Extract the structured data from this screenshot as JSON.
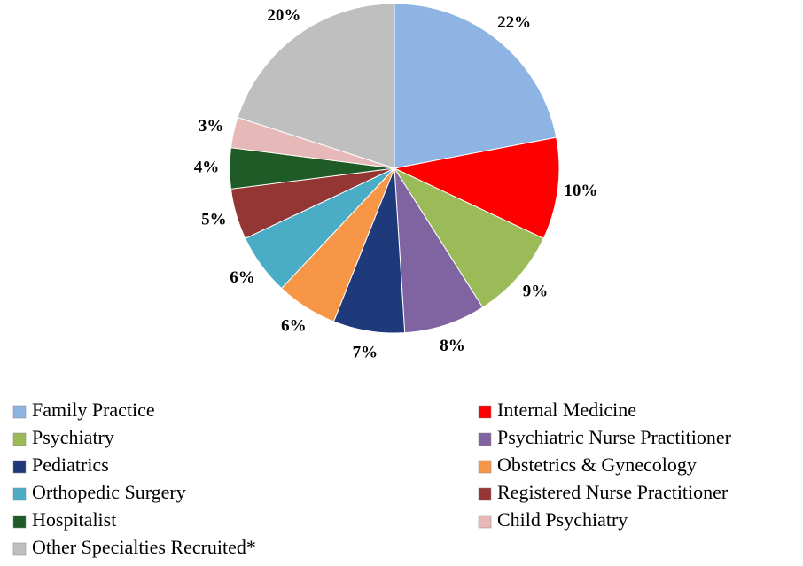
{
  "chart_data": {
    "type": "pie",
    "categories": [
      "Family Practice",
      "Internal Medicine",
      "Psychiatry",
      "Psychiatric Nurse Practitioner",
      "Pediatrics",
      "Obstetrics & Gynecology",
      "Orthopedic Surgery",
      "Registered Nurse Practitioner",
      "Hospitalist",
      "Child Psychiatry",
      "Other Specialties Recruited*"
    ],
    "values": [
      22,
      10,
      9,
      8,
      7,
      6,
      6,
      5,
      4,
      3,
      20
    ],
    "value_labels": [
      "22%",
      "10%",
      "9%",
      "8%",
      "7%",
      "6%",
      "6%",
      "5%",
      "4%",
      "3%",
      "20%"
    ],
    "colors": [
      "#8db4e2",
      "#ff0000",
      "#9bbb59",
      "#8064a2",
      "#1f3a7a",
      "#f79646",
      "#4bacc6",
      "#943634",
      "#1e5b27",
      "#e6b9b8",
      "#bfbfbf"
    ],
    "legend": "bottom"
  }
}
